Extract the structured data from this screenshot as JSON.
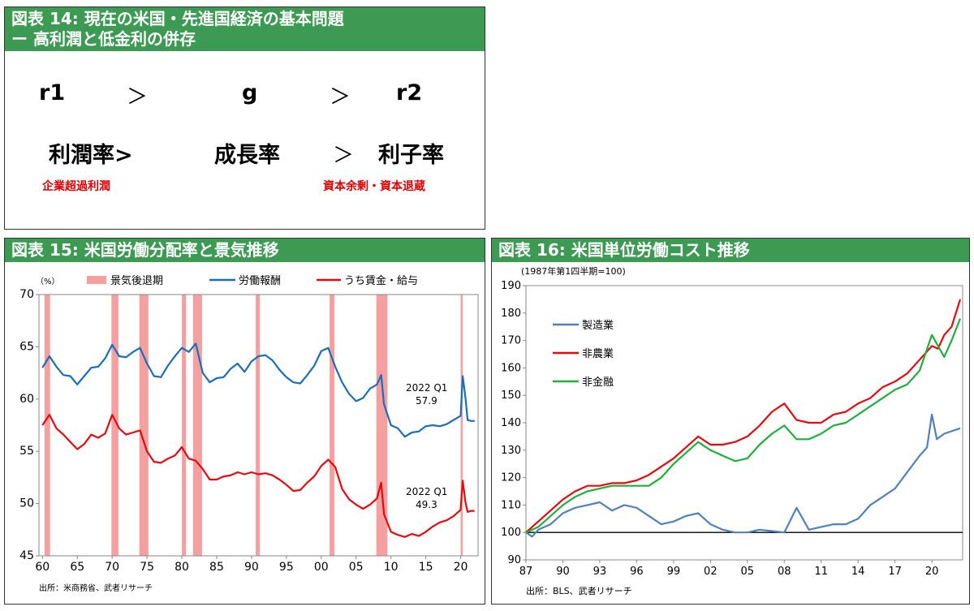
{
  "panel14": {
    "title_line1": "図表 14: 現在の米国・先進国経済の基本問題",
    "title_line2": "ー 高利潤と低金利の併存",
    "row1": [
      "r1",
      "＞",
      "g",
      "＞",
      "r2"
    ],
    "row2": [
      "利潤率>",
      "成長率",
      "＞",
      "利子率"
    ],
    "note_left": "企業超過利潤",
    "note_right": "資本余剰・資本退蔵"
  },
  "chart_data": [
    {
      "type": "line",
      "title": "図表 15: 米国労働分配率と景気推移",
      "unit": "（%）",
      "source": "出所：米商務省、武者リサーチ",
      "ylim": [
        45,
        70
      ],
      "yticks": [
        "45",
        "50",
        "55",
        "60",
        "65",
        "70"
      ],
      "xlim": [
        1959.5,
        2022.5
      ],
      "xticks": [
        {
          "v": 1960,
          "label": "60"
        },
        {
          "v": 1965,
          "label": "65"
        },
        {
          "v": 1970,
          "label": "70"
        },
        {
          "v": 1975,
          "label": "75"
        },
        {
          "v": 1980,
          "label": "80"
        },
        {
          "v": 1985,
          "label": "85"
        },
        {
          "v": 1990,
          "label": "90"
        },
        {
          "v": 1995,
          "label": "95"
        },
        {
          "v": 2000,
          "label": "00"
        },
        {
          "v": 2005,
          "label": "05"
        },
        {
          "v": 2010,
          "label": "10"
        },
        {
          "v": 2015,
          "label": "15"
        },
        {
          "v": 2020,
          "label": "20"
        }
      ],
      "legend": [
        {
          "name": "景気後退期",
          "color": "#f4a0a0",
          "kind": "box"
        },
        {
          "name": "労働報酬",
          "color": "#1a6fb8",
          "kind": "line"
        },
        {
          "name": "うち賃金・給与",
          "color": "#e8090e",
          "kind": "line"
        }
      ],
      "recessions": [
        [
          1960.3,
          1961.1
        ],
        [
          1969.9,
          1970.9
        ],
        [
          1973.9,
          1975.2
        ],
        [
          1980.0,
          1980.6
        ],
        [
          1981.6,
          1982.9
        ],
        [
          1990.6,
          1991.2
        ],
        [
          2001.2,
          2001.9
        ],
        [
          2007.9,
          2009.5
        ],
        [
          2020.0,
          2020.3
        ]
      ],
      "series": [
        {
          "name": "労働報酬",
          "color": "#1a6fb8",
          "x": [
            1960,
            1961,
            1962,
            1963,
            1964,
            1965,
            1966,
            1967,
            1968,
            1969,
            1970,
            1971,
            1972,
            1973,
            1974,
            1975,
            1976,
            1977,
            1978,
            1979,
            1980,
            1981,
            1982,
            1983,
            1984,
            1985,
            1986,
            1987,
            1988,
            1989,
            1990,
            1991,
            1992,
            1993,
            1994,
            1995,
            1996,
            1997,
            1998,
            1999,
            2000,
            2001,
            2002,
            2003,
            2004,
            2005,
            2006,
            2007,
            2008,
            2008.6,
            2009,
            2010,
            2011,
            2012,
            2013,
            2014,
            2015,
            2016,
            2017,
            2018,
            2019,
            2020,
            2020.3,
            2020.7,
            2021,
            2021.5,
            2022
          ],
          "y": [
            63.0,
            64.1,
            63.1,
            62.3,
            62.2,
            61.4,
            62.2,
            63.0,
            63.1,
            63.9,
            65.2,
            64.1,
            64.0,
            64.5,
            64.9,
            63.4,
            62.2,
            62.1,
            63.2,
            64.1,
            64.9,
            64.5,
            65.3,
            62.5,
            61.6,
            62.0,
            62.1,
            62.9,
            63.4,
            62.6,
            63.6,
            64.1,
            64.2,
            63.7,
            62.8,
            62.1,
            61.6,
            61.5,
            62.3,
            63.2,
            64.6,
            64.9,
            63.1,
            61.6,
            60.5,
            59.8,
            60.1,
            61.0,
            61.4,
            62.3,
            59.5,
            57.5,
            57.2,
            56.4,
            56.8,
            56.9,
            57.4,
            57.5,
            57.4,
            57.6,
            58.0,
            58.4,
            62.2,
            60.1,
            58.0,
            57.9,
            57.9
          ]
        },
        {
          "name": "うち賃金・給与",
          "color": "#e8090e",
          "x": [
            1960,
            1961,
            1962,
            1963,
            1964,
            1965,
            1966,
            1967,
            1968,
            1969,
            1970,
            1971,
            1972,
            1973,
            1974,
            1975,
            1976,
            1977,
            1978,
            1979,
            1980,
            1981,
            1982,
            1983,
            1984,
            1985,
            1986,
            1987,
            1988,
            1989,
            1990,
            1991,
            1992,
            1993,
            1994,
            1995,
            1996,
            1997,
            1998,
            1999,
            2000,
            2001,
            2002,
            2003,
            2004,
            2005,
            2006,
            2007,
            2008,
            2008.6,
            2009,
            2010,
            2011,
            2012,
            2013,
            2014,
            2015,
            2016,
            2017,
            2018,
            2019,
            2020,
            2020.3,
            2020.7,
            2021,
            2021.5,
            2022
          ],
          "y": [
            57.5,
            58.5,
            57.2,
            56.6,
            55.9,
            55.2,
            55.7,
            56.6,
            56.3,
            56.7,
            58.5,
            57.2,
            56.6,
            56.8,
            57.0,
            55.0,
            54.0,
            53.9,
            54.3,
            54.6,
            55.4,
            54.3,
            54.1,
            53.3,
            52.3,
            52.3,
            52.6,
            52.7,
            53.0,
            52.8,
            53.0,
            52.8,
            52.9,
            52.7,
            52.3,
            51.8,
            51.2,
            51.3,
            52.0,
            52.6,
            53.6,
            54.2,
            53.5,
            51.4,
            50.4,
            49.9,
            49.5,
            49.9,
            50.5,
            52.0,
            49.0,
            47.3,
            47.0,
            46.8,
            47.1,
            46.9,
            47.3,
            47.8,
            48.2,
            48.4,
            48.8,
            49.4,
            52.2,
            50.1,
            49.2,
            49.3,
            49.3
          ]
        }
      ],
      "annotations": [
        {
          "label": "2022 Q1",
          "value_label": "57.9",
          "series": "労働報酬"
        },
        {
          "label": "2022 Q1",
          "value_label": "49.3",
          "series": "うち賃金・給与"
        }
      ]
    },
    {
      "type": "line",
      "title": "図表 16: 米国単位労働コスト推移",
      "unit": "(1987年第1四半期=100)",
      "source": "出所：BLS、武者リサーチ",
      "ylim": [
        90,
        190
      ],
      "yticks": [
        "90",
        "100",
        "110",
        "120",
        "130",
        "140",
        "150",
        "160",
        "170",
        "180",
        "190"
      ],
      "xlim": [
        1987,
        2022.5
      ],
      "xticks": [
        {
          "v": 1987,
          "label": "87"
        },
        {
          "v": 1990,
          "label": "90"
        },
        {
          "v": 1993,
          "label": "93"
        },
        {
          "v": 1996,
          "label": "96"
        },
        {
          "v": 1999,
          "label": "99"
        },
        {
          "v": 2002,
          "label": "02"
        },
        {
          "v": 2005,
          "label": "05"
        },
        {
          "v": 2008,
          "label": "08"
        },
        {
          "v": 2011,
          "label": "11"
        },
        {
          "v": 2014,
          "label": "14"
        },
        {
          "v": 2017,
          "label": "17"
        },
        {
          "v": 2020,
          "label": "20"
        }
      ],
      "baseline": 100,
      "series": [
        {
          "name": "製造業",
          "color": "#4f81bd",
          "x": [
            1987,
            1987.5,
            1988,
            1989,
            1990,
            1991,
            1992,
            1993,
            1994,
            1995,
            1996,
            1997,
            1998,
            1999,
            2000,
            2001,
            2002,
            2003,
            2004,
            2005,
            2006,
            2007,
            2008,
            2009,
            2010,
            2011,
            2012,
            2013,
            2014,
            2015,
            2016,
            2017,
            2018,
            2019,
            2019.6,
            2020,
            2020.4,
            2021,
            2022.3
          ],
          "y": [
            100,
            98.5,
            101,
            103,
            107,
            109,
            110,
            111,
            108,
            110,
            109,
            106,
            103,
            104,
            106,
            107,
            103,
            101,
            100,
            100,
            101,
            100.5,
            100,
            109,
            101,
            102,
            103,
            103,
            105,
            110,
            113,
            116,
            122,
            128,
            131,
            143,
            134,
            136,
            138
          ]
        },
        {
          "name": "非農業",
          "color": "#e8090e",
          "x": [
            1987,
            1988,
            1989,
            1990,
            1991,
            1992,
            1993,
            1994,
            1995,
            1996,
            1997,
            1998,
            1999,
            2000,
            2001,
            2002,
            2003,
            2004,
            2005,
            2006,
            2007,
            2008,
            2009,
            2010,
            2011,
            2012,
            2013,
            2014,
            2015,
            2016,
            2017,
            2018,
            2019,
            2020,
            2020.5,
            2021,
            2021.6,
            2022.3
          ],
          "y": [
            100,
            104,
            108,
            112,
            115,
            117,
            117,
            118,
            118,
            119,
            121,
            124,
            127,
            131,
            135,
            132,
            132,
            133,
            135,
            139,
            144,
            147,
            141,
            140,
            140,
            143,
            144,
            147,
            149,
            153,
            155,
            158,
            163,
            168,
            167,
            172,
            175,
            185
          ]
        },
        {
          "name": "非金融",
          "color": "#1db03c",
          "x": [
            1987,
            1988,
            1989,
            1990,
            1991,
            1992,
            1993,
            1994,
            1995,
            1996,
            1997,
            1998,
            1999,
            2000,
            2001,
            2002,
            2003,
            2004,
            2005,
            2006,
            2007,
            2008,
            2009,
            2010,
            2011,
            2012,
            2013,
            2014,
            2015,
            2016,
            2017,
            2018,
            2019,
            2020,
            2020.5,
            2021,
            2021.6,
            2022.3
          ],
          "y": [
            100,
            102,
            106,
            110,
            113,
            115,
            116,
            117,
            117,
            117,
            117,
            120,
            125,
            129,
            133,
            130,
            128,
            126,
            127,
            132,
            136,
            139,
            134,
            134,
            136,
            139,
            140,
            143,
            146,
            149,
            152,
            154,
            159,
            172,
            168,
            164,
            170,
            178
          ]
        }
      ]
    }
  ]
}
